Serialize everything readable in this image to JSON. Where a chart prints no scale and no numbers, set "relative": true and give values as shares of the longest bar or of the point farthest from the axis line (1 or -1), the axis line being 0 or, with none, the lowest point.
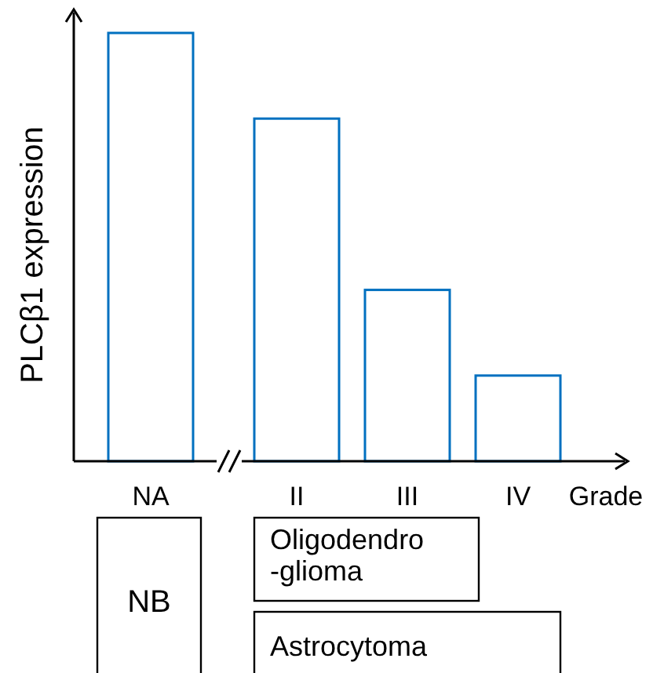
{
  "chart_data": {
    "type": "bar",
    "relative": true,
    "ylabel": "PLCβ1 expression",
    "xlabel": "Grade",
    "categories": [
      "NA",
      "II",
      "III",
      "IV"
    ],
    "values": [
      1,
      0.8,
      0.4,
      0.2
    ],
    "color": "#0070c0",
    "annotations": [
      "NB",
      "Oligodendro\n-glioma",
      "Astrocytoma"
    ]
  }
}
